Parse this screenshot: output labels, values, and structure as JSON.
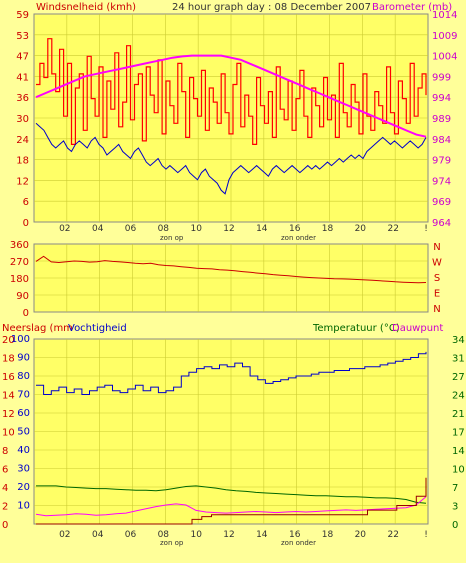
{
  "colors": {
    "background": "#ffff99",
    "plot_bg": "#ffff66",
    "grid": "#cccc33",
    "wind": "#ff0000",
    "gust_line": "#ff0000",
    "barometer": "#ff00ff",
    "wind_avg": "#0000cc",
    "direction": "#cc0000",
    "humidity": "#0000cc",
    "temperature": "#006600",
    "dewpoint": "#ff00ff",
    "rain": "#990000",
    "left_label": "#cc0000",
    "right_label": "#cc00cc",
    "temp_label": "#006600"
  },
  "chart_data": [
    {
      "type": "line",
      "title": "24 hour graph day : 08 December 2007",
      "left_axis_label": "Windsnelheid (kmh)",
      "right_axis_label": "Barometer (mb)",
      "y_ticks_left": [
        "0",
        "6",
        "12",
        "18",
        "24",
        "30",
        "36",
        "41",
        "47",
        "53",
        "59"
      ],
      "y_ticks_right": [
        "964",
        "969",
        "974",
        "979",
        "984",
        "989",
        "994",
        "999",
        "1004",
        "1009",
        "1014"
      ],
      "ylim_left": [
        0,
        59
      ],
      "ylim_right": [
        964,
        1014
      ],
      "x_ticks": [
        "02",
        "04",
        "06",
        "08",
        "10",
        "12",
        "14",
        "16",
        "18",
        "20",
        "22",
        "!"
      ],
      "sunrise_label": "zon op",
      "sunset_label": "zon onder",
      "series": [
        {
          "name": "Windsnelheid (kmh)",
          "values": [
            39,
            45,
            41,
            52,
            42,
            37,
            49,
            30,
            45,
            22,
            38,
            42,
            26,
            47,
            35,
            30,
            44,
            24,
            40,
            32,
            48,
            27,
            34,
            50,
            29,
            39,
            42,
            23,
            44,
            36,
            31,
            46,
            25,
            40,
            33,
            28,
            45,
            37,
            24,
            41,
            35,
            30,
            43,
            26,
            38,
            34,
            28,
            42,
            31,
            25,
            39,
            45,
            27,
            36,
            30,
            22,
            41,
            33,
            28,
            37,
            24,
            44,
            32,
            29,
            40,
            26,
            35,
            43,
            30,
            24,
            38,
            33,
            27,
            41,
            29,
            36,
            24,
            45,
            31,
            27,
            39,
            34,
            25,
            42,
            30,
            26,
            37,
            33,
            28,
            44,
            31,
            25,
            40,
            35,
            28,
            45,
            30,
            38,
            42,
            36
          ]
        },
        {
          "name": "Gemiddelde wind (kmh)",
          "values": [
            28,
            27,
            26,
            24,
            22,
            21,
            22,
            23,
            21,
            20,
            22,
            23,
            22,
            21,
            23,
            24,
            22,
            21,
            19,
            20,
            21,
            22,
            20,
            19,
            18,
            20,
            21,
            19,
            17,
            16,
            17,
            18,
            16,
            15,
            16,
            15,
            14,
            15,
            16,
            14,
            13,
            12,
            14,
            15,
            13,
            12,
            11,
            9,
            8,
            12,
            14,
            15,
            16,
            15,
            14,
            15,
            16,
            15,
            14,
            13,
            15,
            16,
            15,
            14,
            15,
            16,
            15,
            14,
            15,
            16,
            15,
            16,
            15,
            16,
            17,
            16,
            17,
            18,
            17,
            18,
            19,
            18,
            19,
            18,
            20,
            21,
            22,
            23,
            24,
            23,
            22,
            23,
            22,
            21,
            22,
            23,
            22,
            21,
            22,
            24
          ]
        },
        {
          "name": "Barometer (mb)",
          "values": [
            994,
            995,
            996,
            997,
            998,
            999,
            999.5,
            1000,
            1000.5,
            1001,
            1001.5,
            1002,
            1002.5,
            1003,
            1003.5,
            1003.8,
            1004,
            1004,
            1004,
            1004,
            1003.5,
            1003,
            1002,
            1001,
            1000,
            999,
            998,
            997,
            996,
            995,
            994,
            993,
            992,
            991,
            990,
            989,
            988,
            987,
            986,
            985,
            984.5
          ]
        }
      ]
    },
    {
      "type": "line",
      "right_axis_label": "N W S E N",
      "y_ticks_left": [
        "0",
        "90",
        "180",
        "270",
        "360"
      ],
      "ylim": [
        0,
        360
      ],
      "series": [
        {
          "name": "Windrichting",
          "values": [
            268,
            295,
            265,
            262,
            266,
            270,
            268,
            264,
            266,
            272,
            268,
            265,
            262,
            258,
            255,
            258,
            250,
            246,
            244,
            240,
            236,
            232,
            230,
            228,
            224,
            222,
            218,
            214,
            210,
            206,
            202,
            198,
            195,
            192,
            188,
            185,
            182,
            180,
            178,
            176,
            175,
            174,
            172,
            170,
            168,
            165,
            163,
            160,
            158,
            156,
            155,
            156
          ]
        }
      ]
    },
    {
      "type": "line",
      "left_axis_label_rain": "Neerslag (mm",
      "left_axis_label_hum": "Vochtigheid",
      "right_axis_label_temp": "Temperatuur (°C)",
      "right_axis_label_dew": "Dauwpunt",
      "y_ticks_rain": [
        "0",
        "2",
        "4",
        "6",
        "8",
        "10",
        "12",
        "14",
        "16",
        "18",
        "20"
      ],
      "y_ticks_hum": [
        "10",
        "20",
        "30",
        "40",
        "50",
        "60",
        "70",
        "80",
        "90",
        "100"
      ],
      "y_ticks_temp": [
        "0",
        "3",
        "7",
        "10",
        "14",
        "17",
        "21",
        "24",
        "27",
        "31",
        "34"
      ],
      "ylim_hum": [
        0,
        100
      ],
      "ylim_temp": [
        0,
        34
      ],
      "ylim_rain": [
        0,
        20
      ],
      "series": [
        {
          "name": "Vochtigheid",
          "values": [
            75,
            70,
            72,
            74,
            71,
            73,
            70,
            72,
            74,
            75,
            72,
            71,
            73,
            75,
            72,
            74,
            71,
            72,
            74,
            80,
            82,
            84,
            85,
            84,
            86,
            85,
            87,
            85,
            80,
            78,
            76,
            77,
            78,
            79,
            80,
            80,
            81,
            82,
            82,
            83,
            83,
            84,
            84,
            85,
            85,
            86,
            87,
            88,
            89,
            90,
            92,
            93
          ]
        },
        {
          "name": "Temperatuur",
          "values": [
            7,
            7,
            7,
            6.8,
            6.7,
            6.6,
            6.5,
            6.5,
            6.4,
            6.3,
            6.2,
            6.2,
            6.1,
            6.3,
            6.6,
            6.9,
            7,
            6.8,
            6.6,
            6.3,
            6.1,
            6,
            5.8,
            5.7,
            5.6,
            5.5,
            5.4,
            5.3,
            5.2,
            5.2,
            5.1,
            5,
            5,
            4.9,
            4.8,
            4.8,
            4.7,
            4.5,
            4,
            3.8
          ]
        },
        {
          "name": "Dauwpunt",
          "values": [
            1.8,
            1.5,
            1.6,
            1.7,
            1.9,
            1.8,
            1.6,
            1.7,
            1.9,
            2,
            2.4,
            2.8,
            3.2,
            3.5,
            3.7,
            3.5,
            2.5,
            2.2,
            2.1,
            2,
            2.1,
            2.2,
            2.3,
            2.2,
            2.1,
            2.2,
            2.3,
            2.2,
            2.3,
            2.4,
            2.5,
            2.6,
            2.5,
            2.6,
            2.7,
            2.8,
            2.9,
            3,
            3.5,
            5
          ]
        },
        {
          "name": "Neerslag",
          "values": [
            0,
            0,
            0,
            0,
            0,
            0,
            0,
            0,
            0,
            0,
            0,
            0,
            0,
            0,
            0,
            0,
            0.5,
            0.8,
            1,
            1,
            1,
            1,
            1,
            1,
            1,
            1,
            1,
            1,
            1,
            1,
            1,
            1,
            1,
            1,
            1.5,
            1.5,
            1.5,
            2,
            2,
            3,
            5
          ]
        }
      ]
    }
  ]
}
